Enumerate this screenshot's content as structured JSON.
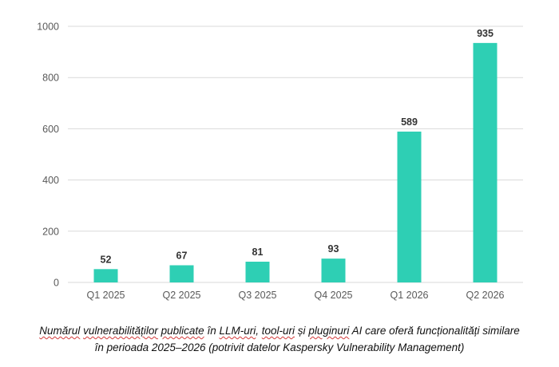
{
  "chart_data": {
    "type": "bar",
    "categories": [
      "Q1 2025",
      "Q2 2025",
      "Q3 2025",
      "Q4 2025",
      "Q1 2026",
      "Q2 2026"
    ],
    "values": [
      52,
      67,
      81,
      93,
      589,
      935
    ],
    "ylim": [
      0,
      1000
    ],
    "yticks": [
      0,
      200,
      400,
      600,
      800,
      1000
    ],
    "grid": true,
    "bar_color": "#2ecfb4",
    "gridline_color": "#d9d9d9",
    "label_color": "#333333",
    "tick_color": "#595959"
  },
  "caption": {
    "word_1": "Numărul",
    "word_2": "vulnerabilităților",
    "word_3": "publicate",
    "line_1_mid": "în",
    "word_4": "LLM-uri",
    "sep_1": ",",
    "word_5": "tool-uri",
    "sep_2": "și",
    "word_6": "pluginuri",
    "line_1_end": "AI care oferă funcționalități similare",
    "line_2": "în perioada 2025–2026 (potrivit datelor Kaspersky Vulnerability Management)"
  }
}
